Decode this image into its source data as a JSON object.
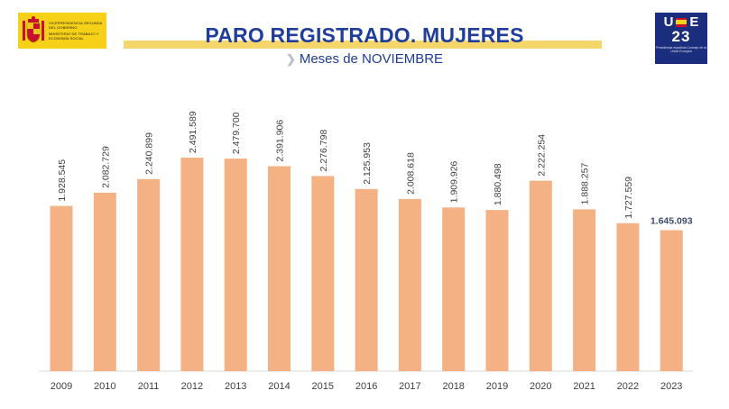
{
  "header": {
    "gov_logo": {
      "line1": "Vicepresidencia Segunda del Gobierno",
      "line2": "Ministerio de Trabajo y Economía Social"
    },
    "eu_logo": {
      "letter": "U",
      "flag_letter": "E",
      "year": "23",
      "subtitle": "Presidencia española Consejo de la Unión Europea"
    }
  },
  "colors": {
    "bar": "#f4b183",
    "title": "#1f3d99",
    "title_underline": "#f5d66a",
    "axis": "#d9d9d9"
  },
  "chart_data": {
    "type": "bar",
    "title": "PARO REGISTRADO. MUJERES",
    "subtitle": "Meses de NOVIEMBRE",
    "categories": [
      "2009",
      "2010",
      "2011",
      "2012",
      "2013",
      "2014",
      "2015",
      "2016",
      "2017",
      "2018",
      "2019",
      "2020",
      "2021",
      "2022",
      "2023"
    ],
    "values": [
      1928545,
      2082729,
      2240899,
      2491589,
      2479700,
      2391906,
      2276798,
      2125953,
      2008618,
      1909926,
      1880498,
      2222254,
      1888257,
      1727559,
      1645093
    ],
    "data_labels": [
      "1.928.545",
      "2.082.729",
      "2.240.899",
      "2.491.589",
      "2.479.700",
      "2.391.906",
      "2.276.798",
      "2.125.953",
      "2.008.618",
      "1.909.926",
      "1.880.498",
      "2.222.254",
      "1.888.257",
      "1.727.559",
      "1.645.093"
    ],
    "highlight_index": 14,
    "ylim": [
      0,
      2500000
    ],
    "grid": false,
    "legend": "none"
  }
}
